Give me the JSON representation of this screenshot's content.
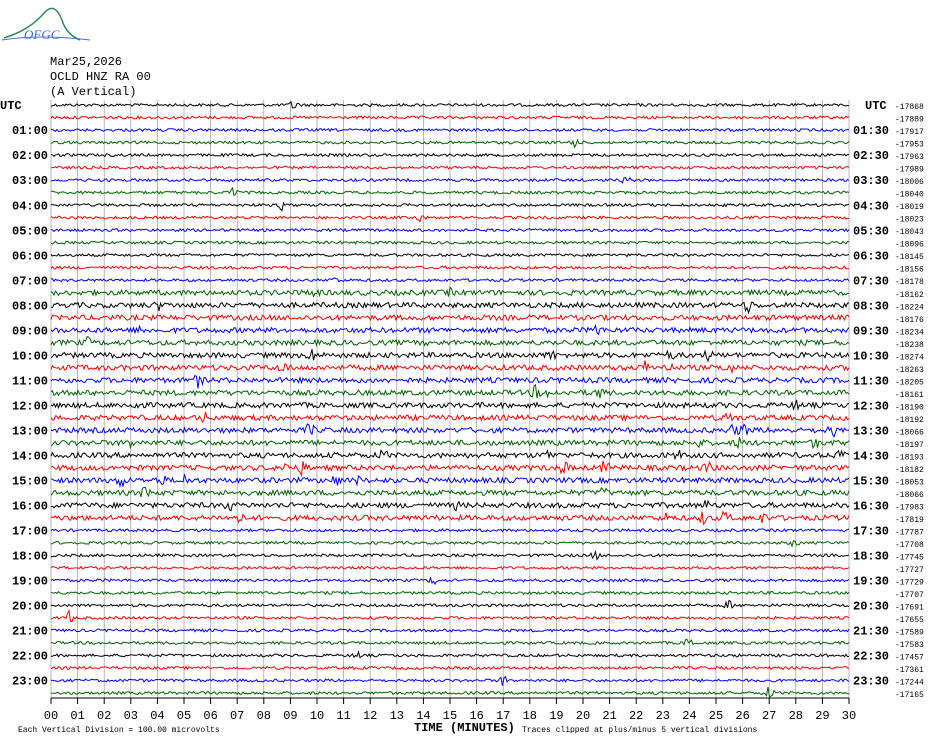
{
  "logo": {
    "text": "OFGC"
  },
  "chart_data": {
    "type": "helicorder",
    "title_lines": [
      "Mar25,2026",
      "OCLD HNZ RA 00",
      "(A Vertical)"
    ],
    "left_header": "UTC",
    "right_header": "UTC",
    "left_labels": [
      "01:00",
      "02:00",
      "03:00",
      "04:00",
      "05:00",
      "06:00",
      "07:00",
      "08:00",
      "09:00",
      "10:00",
      "11:00",
      "12:00",
      "13:00",
      "14:00",
      "15:00",
      "16:00",
      "17:00",
      "18:00",
      "19:00",
      "20:00",
      "21:00",
      "22:00",
      "23:00"
    ],
    "right_labels": [
      "01:30",
      "02:30",
      "03:30",
      "04:30",
      "05:30",
      "06:30",
      "07:30",
      "08:30",
      "09:30",
      "10:30",
      "11:30",
      "12:30",
      "13:30",
      "14:30",
      "15:30",
      "16:30",
      "17:30",
      "18:30",
      "19:30",
      "20:30",
      "21:30",
      "22:30",
      "23:30"
    ],
    "offsets": [
      -17868,
      -17889,
      -17917,
      -17953,
      -17963,
      -17989,
      -18006,
      -18040,
      -18019,
      -18023,
      -18043,
      -18096,
      -18145,
      -18156,
      -18178,
      -18162,
      -18224,
      -18176,
      -18234,
      -18238,
      -18274,
      -18263,
      -18205,
      -18161,
      -18190,
      -18192,
      -18066,
      -18197,
      -18193,
      -18182,
      -18053,
      -18066,
      -17983,
      -17819,
      -17787,
      -17708,
      -17745,
      -17727,
      -17729,
      -17707,
      -17691,
      -17655,
      -17589,
      -17583,
      -17457,
      -17361,
      -17244,
      -17165
    ],
    "trace_colors": [
      "#000000",
      "#ff0000",
      "#0000ff",
      "#006400"
    ],
    "xlim": [
      0,
      30
    ],
    "xticks": [
      {
        "value": 0,
        "label": "00"
      },
      {
        "value": 1,
        "label": "01"
      },
      {
        "value": 2,
        "label": "02"
      },
      {
        "value": 3,
        "label": "03"
      },
      {
        "value": 4,
        "label": "04"
      },
      {
        "value": 5,
        "label": "05"
      },
      {
        "value": 6,
        "label": "06"
      },
      {
        "value": 7,
        "label": "07"
      },
      {
        "value": 8,
        "label": "08"
      },
      {
        "value": 9,
        "label": "09"
      },
      10,
      11,
      12,
      13,
      14,
      15,
      16,
      17,
      18,
      19,
      20,
      21,
      22,
      23,
      24,
      25,
      26,
      27,
      28,
      29,
      30
    ],
    "xlabel": "TIME (MINUTES)",
    "footer_left": "Each Vertical Division =  100.00 microvolts",
    "footer_right": "Traces clipped at plus/minus 5 vertical divisions",
    "grid": true
  }
}
